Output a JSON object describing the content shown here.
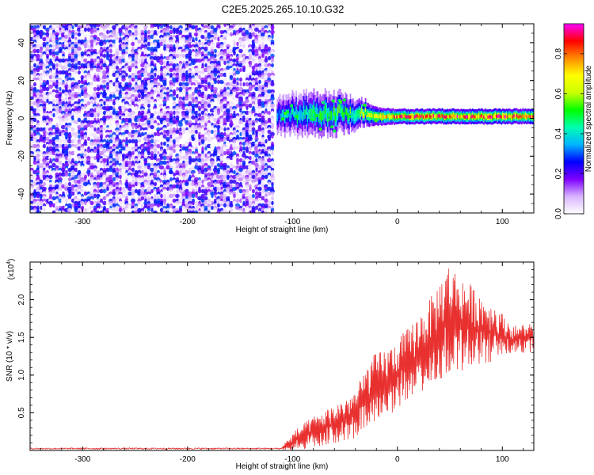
{
  "title": "C2E5.2025.265.10.10.G32",
  "chart_data": [
    {
      "type": "heatmap",
      "name": "spectrogram",
      "xlabel": "Height of straight line (km)",
      "ylabel": "Frequency (Hz)",
      "xlim": [
        -350,
        130
      ],
      "ylim": [
        -50,
        50
      ],
      "xticks": [
        -300,
        -200,
        -100,
        0,
        100
      ],
      "xtick_labels": [
        "-300",
        "-200",
        "-100",
        "0",
        "100"
      ],
      "yticks": [
        -40,
        -20,
        0,
        20,
        40
      ],
      "ytick_labels": [
        "-40",
        "-20",
        "0",
        "20",
        "40"
      ],
      "noise_region": {
        "x": [
          -350,
          -118
        ],
        "y": [
          -50,
          50
        ],
        "amplitude": [
          0.0,
          0.3
        ]
      },
      "signal_band": {
        "points": [
          {
            "x": -115,
            "center_hz": 2,
            "half_width_hz": 6,
            "amplitude": 0.35
          },
          {
            "x": -90,
            "center_hz": 2,
            "half_width_hz": 7,
            "amplitude": 0.45
          },
          {
            "x": -60,
            "center_hz": 3,
            "half_width_hz": 7,
            "amplitude": 0.5
          },
          {
            "x": -40,
            "center_hz": 3,
            "half_width_hz": 5,
            "amplitude": 0.5
          },
          {
            "x": -20,
            "center_hz": 1,
            "half_width_hz": 3,
            "amplitude": 0.7
          },
          {
            "x": 0,
            "center_hz": 1,
            "half_width_hz": 2.5,
            "amplitude": 0.8
          },
          {
            "x": 50,
            "center_hz": 1,
            "half_width_hz": 2.5,
            "amplitude": 0.85
          },
          {
            "x": 100,
            "center_hz": 1,
            "half_width_hz": 2.5,
            "amplitude": 0.85
          },
          {
            "x": 130,
            "center_hz": 1,
            "half_width_hz": 2.5,
            "amplitude": 0.85
          }
        ]
      },
      "colorbar": {
        "label": "Normalized spectral amplitude",
        "lim": [
          0,
          0.95
        ],
        "ticks": [
          0.0,
          0.2,
          0.4,
          0.6,
          0.8
        ],
        "tick_labels": [
          "0.0",
          "0.2",
          "0.4",
          "0.6",
          "0.8"
        ],
        "colors": [
          "#ffffff",
          "#d8b4ff",
          "#7f00ff",
          "#0000ff",
          "#00b4ff",
          "#00ffb0",
          "#00ff00",
          "#c8ff00",
          "#ffff00",
          "#ff8c00",
          "#ff0000",
          "#ff00ff"
        ]
      }
    },
    {
      "type": "line",
      "name": "snr",
      "color": "#e8302f",
      "xlabel": "Height of straight line (km)",
      "ylabel": "SNR (10 * v/v)",
      "y_multiplier": "(x10",
      "y_multiplier_exp": "4",
      "y_multiplier_close": ")",
      "xlim": [
        -350,
        130
      ],
      "ylim": [
        0,
        2.5
      ],
      "xticks": [
        -300,
        -200,
        -100,
        0,
        100
      ],
      "xtick_labels": [
        "-300",
        "-200",
        "-100",
        "0",
        "100"
      ],
      "yticks": [
        0.5,
        1.0,
        1.5,
        2.0
      ],
      "ytick_labels": [
        "0.5",
        "1.0",
        "1.5",
        "2.0"
      ],
      "envelope": [
        {
          "x": -350,
          "low": 0.0,
          "high": 0.05
        },
        {
          "x": -110,
          "low": 0.0,
          "high": 0.06
        },
        {
          "x": -95,
          "low": 0.0,
          "high": 0.3
        },
        {
          "x": -80,
          "low": 0.05,
          "high": 0.45
        },
        {
          "x": -60,
          "low": 0.1,
          "high": 0.6
        },
        {
          "x": -40,
          "low": 0.15,
          "high": 0.8
        },
        {
          "x": -25,
          "low": 0.3,
          "high": 1.25
        },
        {
          "x": -5,
          "low": 0.5,
          "high": 1.4
        },
        {
          "x": 15,
          "low": 0.7,
          "high": 1.7
        },
        {
          "x": 35,
          "low": 0.9,
          "high": 2.1
        },
        {
          "x": 48,
          "low": 1.0,
          "high": 2.5
        },
        {
          "x": 70,
          "low": 1.1,
          "high": 2.2
        },
        {
          "x": 95,
          "low": 1.2,
          "high": 1.9
        },
        {
          "x": 110,
          "low": 1.3,
          "high": 1.65
        },
        {
          "x": 130,
          "low": 1.3,
          "high": 1.7
        }
      ]
    }
  ]
}
